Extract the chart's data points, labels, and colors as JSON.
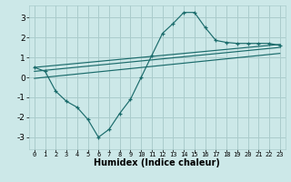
{
  "xlabel": "Humidex (Indice chaleur)",
  "background_color": "#cce8e8",
  "grid_color": "#aacccc",
  "line_color": "#1a6b6b",
  "x_ticks": [
    0,
    1,
    2,
    3,
    4,
    5,
    6,
    7,
    8,
    9,
    10,
    11,
    12,
    13,
    14,
    15,
    16,
    17,
    18,
    19,
    20,
    21,
    22,
    23
  ],
  "y_ticks": [
    -3,
    -2,
    -1,
    0,
    1,
    2,
    3
  ],
  "xlim": [
    -0.5,
    23.5
  ],
  "ylim": [
    -3.6,
    3.6
  ],
  "series_main": {
    "x": [
      0,
      1,
      2,
      3,
      4,
      5,
      6,
      7,
      8,
      9,
      10,
      11,
      12,
      13,
      14,
      15,
      16,
      17,
      18,
      19,
      20,
      21,
      22,
      23
    ],
    "y": [
      0.5,
      0.3,
      -0.7,
      -1.2,
      -1.5,
      -2.1,
      -3.0,
      -2.6,
      -1.8,
      -1.1,
      0.0,
      1.1,
      2.2,
      2.7,
      3.25,
      3.25,
      2.5,
      1.85,
      1.75,
      1.7,
      1.7,
      1.7,
      1.7,
      1.6
    ]
  },
  "trend_lines": [
    {
      "x": [
        0,
        23
      ],
      "y": [
        0.5,
        1.65
      ]
    },
    {
      "x": [
        0,
        23
      ],
      "y": [
        0.3,
        1.5
      ]
    },
    {
      "x": [
        0,
        23
      ],
      "y": [
        -0.05,
        1.2
      ]
    }
  ]
}
